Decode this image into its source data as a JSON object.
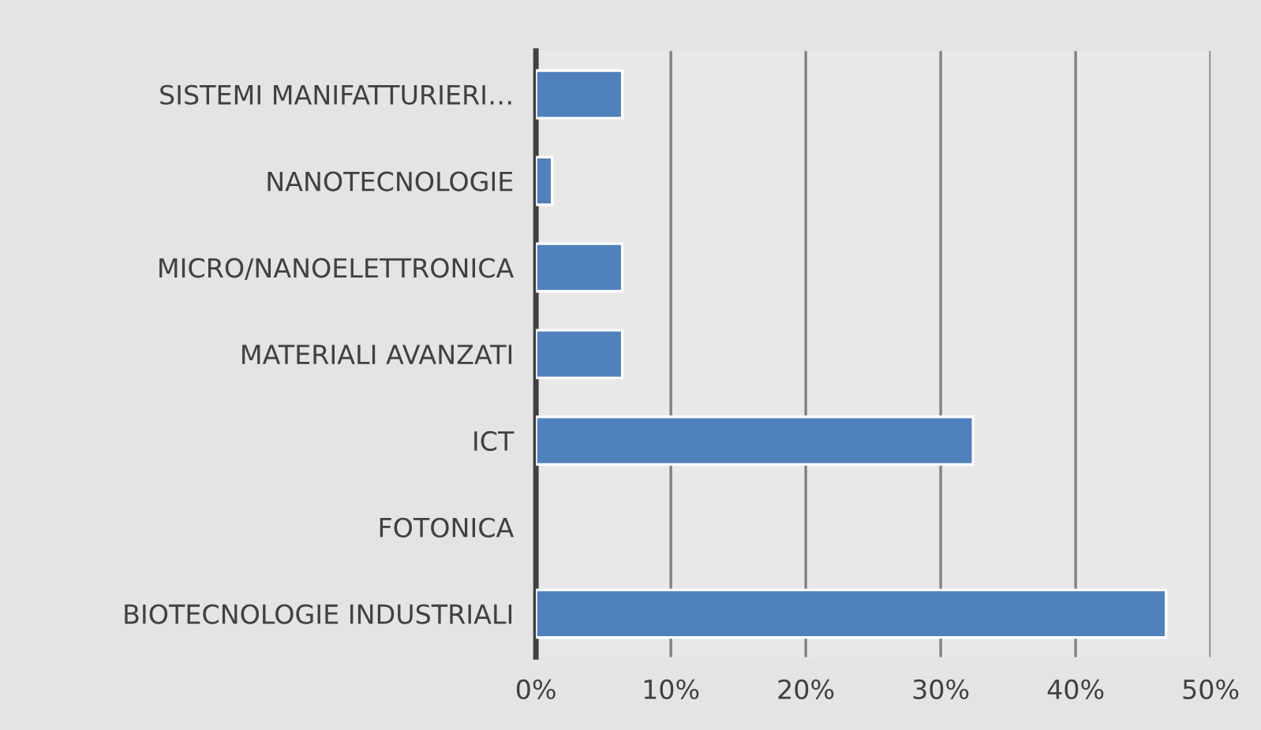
{
  "chart_data": {
    "type": "bar",
    "orientation": "horizontal",
    "categories": [
      "SISTEMI MANIFATTURIERI…",
      "NANOTECNOLOGIE",
      "MICRO/NANOELETTRONICA",
      "MATERIALI AVANZATI",
      "ICT",
      "FOTONICA",
      "BIOTECNOLOGIE INDUSTRIALI"
    ],
    "values": [
      6.4,
      1.2,
      6.4,
      6.4,
      32.4,
      0,
      46.7
    ],
    "color": "#4f81bd",
    "xlim": [
      0,
      50
    ],
    "xticks": [
      {
        "value": 0,
        "label": "0%"
      },
      {
        "value": 10,
        "label": "10%"
      },
      {
        "value": 20,
        "label": "20%"
      },
      {
        "value": 30,
        "label": "30%"
      },
      {
        "value": 40,
        "label": "40%"
      },
      {
        "value": 50,
        "label": "50%"
      }
    ],
    "grid": "x"
  }
}
